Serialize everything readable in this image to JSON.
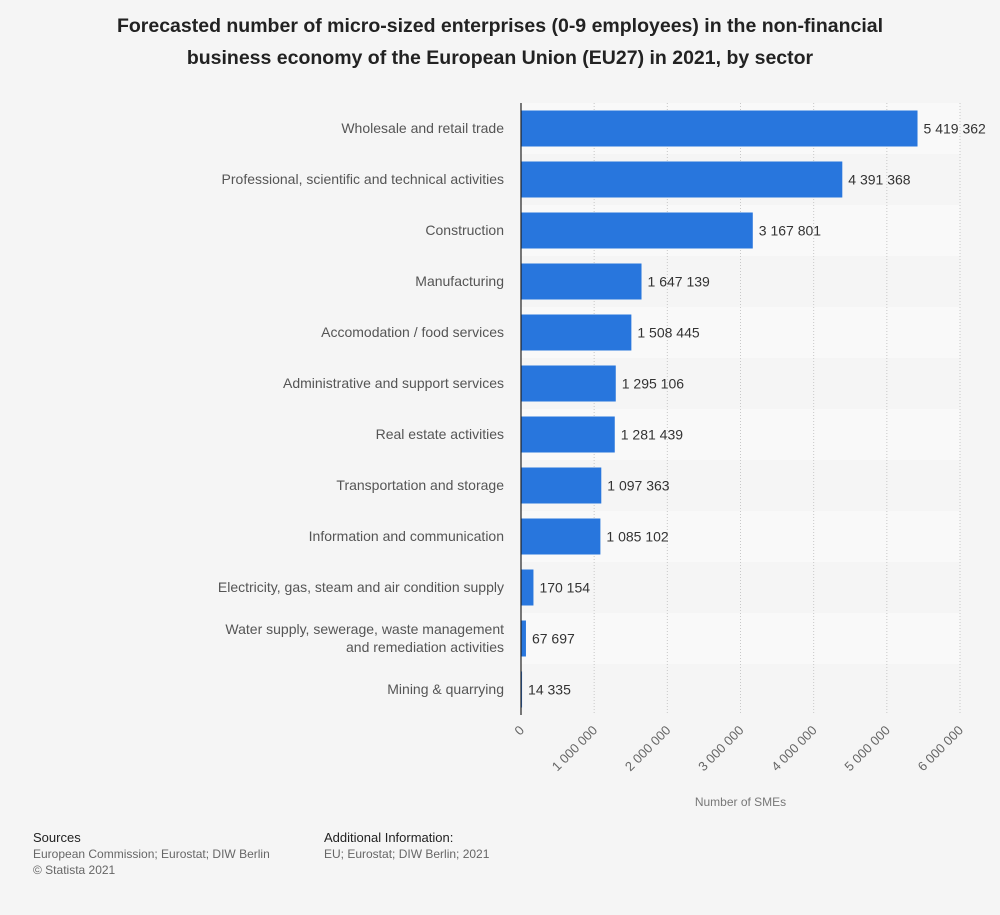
{
  "title_lines": [
    "Forecasted number of micro-sized enterprises (0-9 employees) in the non-financial",
    "business economy of the European Union (EU27) in 2021, by sector"
  ],
  "chart_data": {
    "type": "bar",
    "orientation": "horizontal",
    "title": "Forecasted number of micro-sized enterprises (0-9 employees) in the non-financial business economy of the European Union (EU27) in 2021, by sector",
    "categories": [
      [
        "Wholesale and retail trade"
      ],
      [
        "Professional, scientific and technical activities"
      ],
      [
        "Construction"
      ],
      [
        "Manufacturing"
      ],
      [
        "Accomodation / food services"
      ],
      [
        "Administrative and support services"
      ],
      [
        "Real estate activities"
      ],
      [
        "Transportation and storage"
      ],
      [
        "Information and communication"
      ],
      [
        "Electricity, gas, steam and air condition supply"
      ],
      [
        "Water supply, sewerage, waste management",
        "and remediation activities"
      ],
      [
        "Mining & quarrying"
      ]
    ],
    "values": [
      5419362,
      4391368,
      3167801,
      1647139,
      1508445,
      1295106,
      1281439,
      1097363,
      1085102,
      170154,
      67697,
      14335
    ],
    "value_labels": [
      "5 419 362",
      "4 391 368",
      "3 167 801",
      "1 647 139",
      "1 508 445",
      "1 295 106",
      "1 281 439",
      "1 097 363",
      "1 085 102",
      "170 154",
      "67 697",
      "14 335"
    ],
    "xlabel": "Number of SMEs",
    "ylabel": "",
    "xlim": [
      0,
      6000000
    ],
    "ticks": [
      0,
      1000000,
      2000000,
      3000000,
      4000000,
      5000000,
      6000000
    ],
    "tick_labels": [
      "0",
      "1 000 000",
      "2 000 000",
      "3 000 000",
      "4 000 000",
      "5 000 000",
      "6 000 000"
    ],
    "grid": "vertical dotted",
    "colors": {
      "bar": "#2876dd",
      "band": "#f9f9f9"
    }
  },
  "footer": {
    "sources_heading": "Sources",
    "sources_line1": "European Commission; Eurostat; DIW Berlin",
    "sources_line2": "© Statista 2021",
    "additional_heading": "Additional Information:",
    "additional_text": "EU; Eurostat; DIW Berlin; 2021"
  }
}
